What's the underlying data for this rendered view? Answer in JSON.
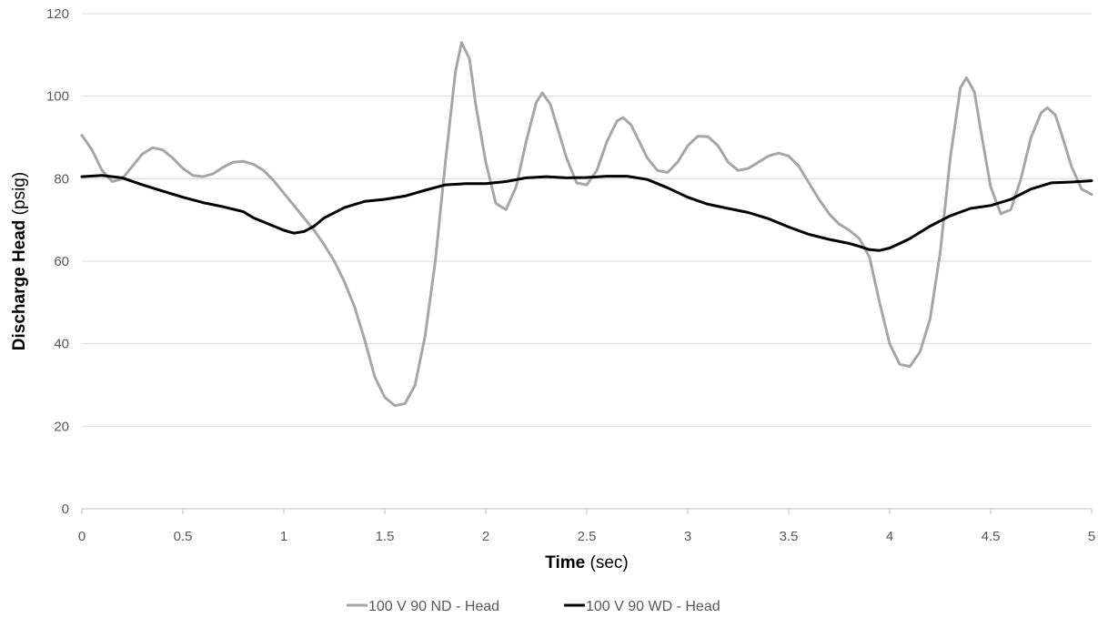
{
  "chart_data": {
    "type": "line",
    "xlabel_bold": "Time",
    "xlabel_rest": " (sec)",
    "ylabel_bold": "Discharge Head",
    "ylabel_rest": " (psig)",
    "xlim": [
      0,
      5
    ],
    "ylim": [
      0,
      120
    ],
    "x_ticks": [
      "0",
      "0.5",
      "1",
      "1.5",
      "2",
      "2.5",
      "3",
      "3.5",
      "4",
      "4.5",
      "5"
    ],
    "y_ticks": [
      "0",
      "20",
      "40",
      "60",
      "80",
      "100",
      "120"
    ],
    "grid": "horizontal",
    "legend_position": "bottom",
    "series": [
      {
        "name": "100 V 90 ND - Head",
        "color": "#a6a6a6",
        "points": [
          [
            0.0,
            90.5
          ],
          [
            0.05,
            87
          ],
          [
            0.1,
            82
          ],
          [
            0.15,
            79.3
          ],
          [
            0.2,
            80
          ],
          [
            0.25,
            83
          ],
          [
            0.3,
            86
          ],
          [
            0.35,
            87.5
          ],
          [
            0.4,
            87
          ],
          [
            0.45,
            85
          ],
          [
            0.5,
            82.5
          ],
          [
            0.55,
            80.8
          ],
          [
            0.6,
            80.5
          ],
          [
            0.65,
            81.2
          ],
          [
            0.7,
            82.8
          ],
          [
            0.75,
            84
          ],
          [
            0.8,
            84.2
          ],
          [
            0.85,
            83.5
          ],
          [
            0.9,
            82
          ],
          [
            0.95,
            79.5
          ],
          [
            1.0,
            76.5
          ],
          [
            1.05,
            73.5
          ],
          [
            1.1,
            70.5
          ],
          [
            1.15,
            67.5
          ],
          [
            1.2,
            64
          ],
          [
            1.25,
            60
          ],
          [
            1.3,
            55
          ],
          [
            1.35,
            49
          ],
          [
            1.4,
            41
          ],
          [
            1.45,
            32
          ],
          [
            1.5,
            27
          ],
          [
            1.55,
            25
          ],
          [
            1.6,
            25.5
          ],
          [
            1.65,
            30
          ],
          [
            1.7,
            42
          ],
          [
            1.75,
            60
          ],
          [
            1.8,
            84
          ],
          [
            1.85,
            106
          ],
          [
            1.88,
            113
          ],
          [
            1.92,
            109
          ],
          [
            1.95,
            98
          ],
          [
            2.0,
            84
          ],
          [
            2.05,
            74
          ],
          [
            2.1,
            72.5
          ],
          [
            2.15,
            78
          ],
          [
            2.2,
            89
          ],
          [
            2.25,
            98.5
          ],
          [
            2.28,
            100.8
          ],
          [
            2.32,
            98
          ],
          [
            2.4,
            85
          ],
          [
            2.45,
            79
          ],
          [
            2.5,
            78.5
          ],
          [
            2.55,
            82
          ],
          [
            2.6,
            89
          ],
          [
            2.65,
            94
          ],
          [
            2.68,
            94.8
          ],
          [
            2.72,
            93
          ],
          [
            2.8,
            85
          ],
          [
            2.85,
            82
          ],
          [
            2.9,
            81.5
          ],
          [
            2.95,
            84
          ],
          [
            3.0,
            88
          ],
          [
            3.05,
            90.3
          ],
          [
            3.1,
            90.2
          ],
          [
            3.15,
            88
          ],
          [
            3.2,
            84
          ],
          [
            3.25,
            82
          ],
          [
            3.3,
            82.5
          ],
          [
            3.35,
            84
          ],
          [
            3.4,
            85.5
          ],
          [
            3.45,
            86.2
          ],
          [
            3.5,
            85.5
          ],
          [
            3.55,
            83
          ],
          [
            3.6,
            79
          ],
          [
            3.65,
            75
          ],
          [
            3.7,
            71.5
          ],
          [
            3.75,
            69
          ],
          [
            3.8,
            67.5
          ],
          [
            3.85,
            65.5
          ],
          [
            3.9,
            61
          ],
          [
            3.95,
            50
          ],
          [
            4.0,
            40
          ],
          [
            4.05,
            35
          ],
          [
            4.1,
            34.5
          ],
          [
            4.15,
            38
          ],
          [
            4.2,
            46
          ],
          [
            4.25,
            62
          ],
          [
            4.3,
            85
          ],
          [
            4.35,
            102
          ],
          [
            4.38,
            104.5
          ],
          [
            4.42,
            101
          ],
          [
            4.45,
            92
          ],
          [
            4.5,
            78
          ],
          [
            4.55,
            71.5
          ],
          [
            4.6,
            72.5
          ],
          [
            4.65,
            80
          ],
          [
            4.7,
            90
          ],
          [
            4.75,
            96
          ],
          [
            4.78,
            97.2
          ],
          [
            4.82,
            95.5
          ],
          [
            4.85,
            91
          ],
          [
            4.9,
            83
          ],
          [
            4.95,
            77.5
          ],
          [
            5.0,
            76.2
          ]
        ]
      },
      {
        "name": "100 V 90 WD - Head",
        "color": "#000000",
        "points": [
          [
            0.0,
            80.5
          ],
          [
            0.1,
            80.8
          ],
          [
            0.2,
            80.2
          ],
          [
            0.3,
            78.5
          ],
          [
            0.4,
            77
          ],
          [
            0.5,
            75.5
          ],
          [
            0.6,
            74.2
          ],
          [
            0.7,
            73.2
          ],
          [
            0.8,
            72
          ],
          [
            0.85,
            70.5
          ],
          [
            0.9,
            69.5
          ],
          [
            0.95,
            68.5
          ],
          [
            1.0,
            67.5
          ],
          [
            1.05,
            66.8
          ],
          [
            1.1,
            67.2
          ],
          [
            1.15,
            68.5
          ],
          [
            1.2,
            70.5
          ],
          [
            1.3,
            73
          ],
          [
            1.4,
            74.5
          ],
          [
            1.5,
            75
          ],
          [
            1.6,
            75.8
          ],
          [
            1.7,
            77.2
          ],
          [
            1.8,
            78.5
          ],
          [
            1.9,
            78.8
          ],
          [
            2.0,
            78.8
          ],
          [
            2.1,
            79.3
          ],
          [
            2.2,
            80.2
          ],
          [
            2.3,
            80.5
          ],
          [
            2.4,
            80.2
          ],
          [
            2.5,
            80.3
          ],
          [
            2.6,
            80.6
          ],
          [
            2.7,
            80.6
          ],
          [
            2.8,
            79.8
          ],
          [
            2.9,
            77.8
          ],
          [
            3.0,
            75.5
          ],
          [
            3.1,
            73.8
          ],
          [
            3.2,
            72.8
          ],
          [
            3.3,
            71.8
          ],
          [
            3.4,
            70.3
          ],
          [
            3.5,
            68.3
          ],
          [
            3.6,
            66.5
          ],
          [
            3.7,
            65.3
          ],
          [
            3.8,
            64.3
          ],
          [
            3.85,
            63.6
          ],
          [
            3.9,
            62.8
          ],
          [
            3.95,
            62.6
          ],
          [
            4.0,
            63.2
          ],
          [
            4.05,
            64.3
          ],
          [
            4.1,
            65.5
          ],
          [
            4.2,
            68.5
          ],
          [
            4.3,
            71
          ],
          [
            4.4,
            72.8
          ],
          [
            4.5,
            73.5
          ],
          [
            4.6,
            75
          ],
          [
            4.7,
            77.5
          ],
          [
            4.8,
            79
          ],
          [
            4.9,
            79.2
          ],
          [
            5.0,
            79.5
          ]
        ]
      }
    ]
  }
}
